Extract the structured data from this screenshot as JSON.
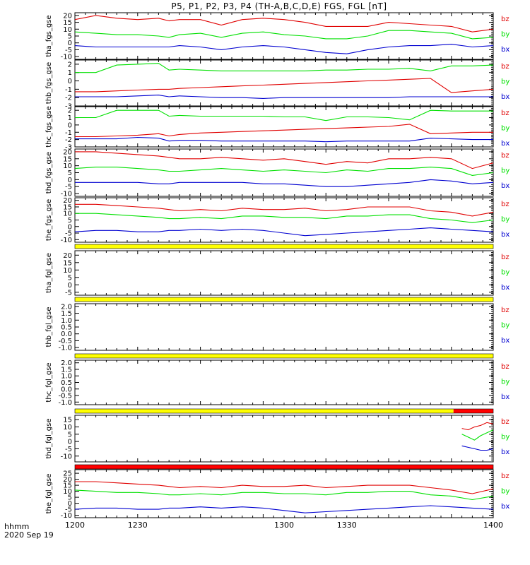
{
  "title": "P5, P1, P2, P3, P4 (TH-A,B,C,D,E) FGS, FGL [nT]",
  "corner_label": "hhmm",
  "date_label": "2020 Sep 19",
  "x_tick_labels": [
    "1200",
    "1230",
    "1300",
    "1330",
    "1400"
  ],
  "components": [
    "bz",
    "by",
    "bx"
  ],
  "colors": {
    "bz": "#e00000",
    "by": "#00e000",
    "bx": "#0000d0",
    "flag_yellow": "#ffff00",
    "flag_red": "#ff0000"
  },
  "chart_data": [
    {
      "type": "line",
      "ylabel": "tha_fgs_gse",
      "xlim": [
        1200,
        1400
      ],
      "ylim": [
        -12,
        22
      ],
      "yticks": [
        "20",
        "15",
        "10",
        "5",
        "0",
        "-5",
        "-10"
      ],
      "x": [
        1200,
        1210,
        1220,
        1230,
        1240,
        1245,
        1250,
        1260,
        1270,
        1280,
        1290,
        1300,
        1310,
        1320,
        1330,
        1340,
        1350,
        1360,
        1370,
        1380,
        1390,
        1400
      ],
      "series": [
        {
          "name": "bz",
          "values": [
            17,
            20,
            18,
            17,
            18,
            16,
            17,
            17,
            13,
            17,
            18,
            17,
            15,
            12,
            12,
            12,
            15,
            14,
            13,
            12,
            8,
            10
          ]
        },
        {
          "name": "by",
          "values": [
            8,
            7,
            6,
            6,
            5,
            4,
            6,
            7,
            4,
            7,
            8,
            6,
            5,
            3,
            3,
            5,
            9,
            9,
            8,
            7,
            3,
            4
          ]
        },
        {
          "name": "bx",
          "values": [
            -2,
            -3,
            -3,
            -3,
            -3,
            -3,
            -2,
            -3,
            -5,
            -3,
            -2,
            -3,
            -5,
            -7,
            -8,
            -5,
            -3,
            -2,
            -2,
            -1,
            -3,
            -2
          ]
        }
      ]
    },
    {
      "type": "line",
      "ylabel": "thb_fgs_gse",
      "xlim": [
        1200,
        1400
      ],
      "ylim": [
        -3,
        2.5
      ],
      "yticks": [
        "2",
        "1",
        "0",
        "-1",
        "-2",
        "-3"
      ],
      "x": [
        1200,
        1210,
        1220,
        1230,
        1240,
        1245,
        1250,
        1260,
        1270,
        1280,
        1290,
        1300,
        1310,
        1320,
        1330,
        1340,
        1350,
        1360,
        1370,
        1380,
        1390,
        1400
      ],
      "series": [
        {
          "name": "bz",
          "values": [
            -1.3,
            -1.3,
            -1.2,
            -1.1,
            -1,
            -1,
            -0.9,
            -0.8,
            -0.7,
            -0.6,
            -0.5,
            -0.4,
            -0.3,
            -0.2,
            -0.1,
            0,
            0.1,
            0.2,
            0.3,
            -1.4,
            -1.2,
            -1
          ]
        },
        {
          "name": "by",
          "values": [
            1,
            1,
            1.9,
            2,
            2.1,
            1.3,
            1.4,
            1.3,
            1.2,
            1.2,
            1.2,
            1.2,
            1.2,
            1.3,
            1.3,
            1.4,
            1.4,
            1.5,
            1.2,
            1.8,
            1.8,
            1.9
          ]
        },
        {
          "name": "bx",
          "values": [
            -1.9,
            -1.9,
            -1.9,
            -1.8,
            -1.7,
            -1.9,
            -1.8,
            -1.9,
            -2,
            -2,
            -2.1,
            -2,
            -2,
            -2,
            -2,
            -2,
            -2,
            -1.9,
            -1.9,
            -1.9,
            -1.9,
            -1.9
          ]
        }
      ]
    },
    {
      "type": "line",
      "ylabel": "thc_fgs_gse",
      "xlim": [
        1200,
        1400
      ],
      "ylim": [
        -3,
        2.5
      ],
      "yticks": [
        "2",
        "1",
        "0",
        "-1",
        "-2",
        "-3"
      ],
      "x": [
        1200,
        1210,
        1220,
        1230,
        1240,
        1245,
        1250,
        1260,
        1270,
        1280,
        1290,
        1300,
        1310,
        1320,
        1330,
        1340,
        1350,
        1360,
        1370,
        1380,
        1390,
        1400
      ],
      "series": [
        {
          "name": "bz",
          "values": [
            -1.6,
            -1.6,
            -1.5,
            -1.4,
            -1.2,
            -1.5,
            -1.3,
            -1.1,
            -1,
            -0.9,
            -0.8,
            -0.7,
            -0.6,
            -0.5,
            -0.4,
            -0.3,
            -0.2,
            0.1,
            -1.2,
            -1.1,
            -1,
            -1
          ]
        },
        {
          "name": "by",
          "values": [
            1,
            1,
            2,
            2,
            2,
            1.2,
            1.3,
            1.2,
            1.2,
            1.2,
            1.2,
            1.1,
            1.1,
            0.6,
            1.1,
            1.1,
            1,
            0.7,
            2,
            1.9,
            1.9,
            1.9
          ]
        },
        {
          "name": "bx",
          "values": [
            -1.9,
            -1.9,
            -1.9,
            -1.7,
            -1.8,
            -2.2,
            -2.1,
            -2.1,
            -2.2,
            -2.2,
            -2.2,
            -2.2,
            -2.2,
            -2.3,
            -2.2,
            -2.2,
            -2.2,
            -2.2,
            -1.8,
            -1.9,
            -2,
            -2
          ]
        }
      ]
    },
    {
      "type": "line",
      "ylabel": "thd_fgs_gse",
      "xlim": [
        1200,
        1400
      ],
      "ylim": [
        -12,
        22
      ],
      "yticks": [
        "20",
        "15",
        "10",
        "5",
        "0",
        "-5",
        "-10"
      ],
      "x": [
        1200,
        1210,
        1220,
        1230,
        1240,
        1245,
        1250,
        1260,
        1270,
        1280,
        1290,
        1300,
        1310,
        1320,
        1330,
        1340,
        1350,
        1360,
        1370,
        1380,
        1390,
        1400
      ],
      "series": [
        {
          "name": "bz",
          "values": [
            20,
            20,
            19,
            18,
            17,
            16,
            15,
            15,
            16,
            15,
            14,
            15,
            13,
            11,
            13,
            12,
            15,
            15,
            16,
            15,
            8,
            12
          ]
        },
        {
          "name": "by",
          "values": [
            8,
            9,
            9,
            8,
            7,
            6,
            6,
            7,
            8,
            7,
            6,
            7,
            6,
            5,
            7,
            6,
            8,
            8,
            9,
            8,
            3,
            5
          ]
        },
        {
          "name": "bx",
          "values": [
            -2,
            -2,
            -2,
            -2,
            -3,
            -3,
            -2,
            -2,
            -2,
            -2,
            -3,
            -3,
            -4,
            -5,
            -5,
            -4,
            -3,
            -2,
            0,
            -1,
            -3,
            -2
          ]
        }
      ]
    },
    {
      "type": "line",
      "ylabel": "the_fgs_gse",
      "xlim": [
        1200,
        1400
      ],
      "ylim": [
        -12,
        22
      ],
      "yticks": [
        "20",
        "15",
        "10",
        "5",
        "0",
        "-5",
        "-10"
      ],
      "x": [
        1200,
        1210,
        1220,
        1230,
        1240,
        1245,
        1250,
        1260,
        1270,
        1280,
        1290,
        1300,
        1310,
        1320,
        1330,
        1340,
        1350,
        1360,
        1370,
        1380,
        1390,
        1400
      ],
      "series": [
        {
          "name": "bz",
          "values": [
            17,
            17,
            16,
            15,
            14,
            13,
            12,
            13,
            12,
            14,
            13,
            13,
            14,
            12,
            13,
            15,
            15,
            15,
            12,
            11,
            8,
            11
          ]
        },
        {
          "name": "by",
          "values": [
            10,
            10,
            9,
            8,
            7,
            6,
            6,
            7,
            6,
            8,
            8,
            7,
            7,
            6,
            8,
            8,
            9,
            9,
            6,
            5,
            3,
            5
          ]
        },
        {
          "name": "bx",
          "values": [
            -4,
            -3,
            -3,
            -4,
            -4,
            -3,
            -3,
            -2,
            -3,
            -2,
            -3,
            -5,
            -7,
            -6,
            -5,
            -4,
            -3,
            -2,
            -1,
            -2,
            -3,
            -4
          ]
        }
      ]
    },
    {
      "type": "line",
      "ylabel": "tha_fgl_gse",
      "xlim": [
        1200,
        1400
      ],
      "ylim": [
        -7,
        23
      ],
      "yticks": [
        "20",
        "15",
        "10",
        "5",
        "0",
        "-5"
      ],
      "x": [],
      "series": []
    },
    {
      "type": "line",
      "ylabel": "thb_fgl_gse",
      "xlim": [
        1200,
        1400
      ],
      "ylim": [
        -1.2,
        2.2
      ],
      "yticks": [
        "2.0",
        "1.5",
        "1.0",
        "0.5",
        "0.0",
        "-0.5",
        "-1.0"
      ],
      "x": [],
      "series": []
    },
    {
      "type": "line",
      "ylabel": "thc_fgl_gse",
      "xlim": [
        1200,
        1400
      ],
      "ylim": [
        -1.2,
        2.2
      ],
      "yticks": [
        "2.0",
        "1.5",
        "1.0",
        "0.5",
        "0.0",
        "-0.5",
        "-1.0"
      ],
      "x": [],
      "series": []
    },
    {
      "type": "line",
      "ylabel": "thd_fgl_gse",
      "xlim": [
        1200,
        1400
      ],
      "ylim": [
        -14,
        18
      ],
      "yticks": [
        "15",
        "10",
        "5",
        "0",
        "-5",
        "-10"
      ],
      "x": [
        1385,
        1388,
        1391,
        1394,
        1397,
        1400
      ],
      "series": [
        {
          "name": "bz",
          "values": [
            9,
            8,
            10,
            11,
            13,
            12
          ]
        },
        {
          "name": "by",
          "values": [
            5,
            3,
            1,
            4,
            6,
            8
          ]
        },
        {
          "name": "bx",
          "values": [
            -3,
            -4,
            -5,
            -6,
            -6,
            -5
          ]
        }
      ]
    },
    {
      "type": "line",
      "ylabel": "the_fgl_gse",
      "xlim": [
        1200,
        1400
      ],
      "ylim": [
        -12,
        28
      ],
      "yticks": [
        "25",
        "20",
        "15",
        "10",
        "5",
        "0",
        "-5",
        "-10"
      ],
      "x": [
        1200,
        1210,
        1220,
        1230,
        1240,
        1245,
        1250,
        1260,
        1270,
        1280,
        1290,
        1300,
        1310,
        1320,
        1330,
        1340,
        1350,
        1360,
        1370,
        1380,
        1390,
        1400
      ],
      "series": [
        {
          "name": "bz",
          "values": [
            18,
            18,
            17,
            16,
            15,
            14,
            13,
            14,
            13,
            15,
            14,
            14,
            15,
            13,
            14,
            15,
            15,
            15,
            13,
            11,
            8,
            12
          ]
        },
        {
          "name": "by",
          "values": [
            11,
            10,
            9,
            9,
            8,
            7,
            7,
            8,
            7,
            9,
            9,
            8,
            8,
            7,
            9,
            9,
            10,
            10,
            7,
            6,
            3,
            6
          ]
        },
        {
          "name": "bx",
          "values": [
            -5,
            -4,
            -4,
            -5,
            -5,
            -4,
            -4,
            -3,
            -4,
            -3,
            -4,
            -6,
            -8,
            -7,
            -6,
            -5,
            -4,
            -3,
            -2,
            -3,
            -4,
            -5
          ]
        }
      ]
    }
  ],
  "quality_flags": [
    {
      "segments": [
        {
          "from": 1200,
          "to": 1400,
          "color": "flag_yellow"
        }
      ]
    },
    {
      "segments": [
        {
          "from": 1200,
          "to": 1400,
          "color": "flag_yellow"
        }
      ]
    },
    {
      "segments": [
        {
          "from": 1200,
          "to": 1400,
          "color": "flag_yellow"
        }
      ]
    },
    {
      "segments": [
        {
          "from": 1200,
          "to": 1381,
          "color": "flag_yellow"
        },
        {
          "from": 1381,
          "to": 1400,
          "color": "flag_red"
        }
      ]
    },
    {
      "segments": [
        {
          "from": 1200,
          "to": 1400,
          "color": "flag_red"
        }
      ]
    }
  ]
}
